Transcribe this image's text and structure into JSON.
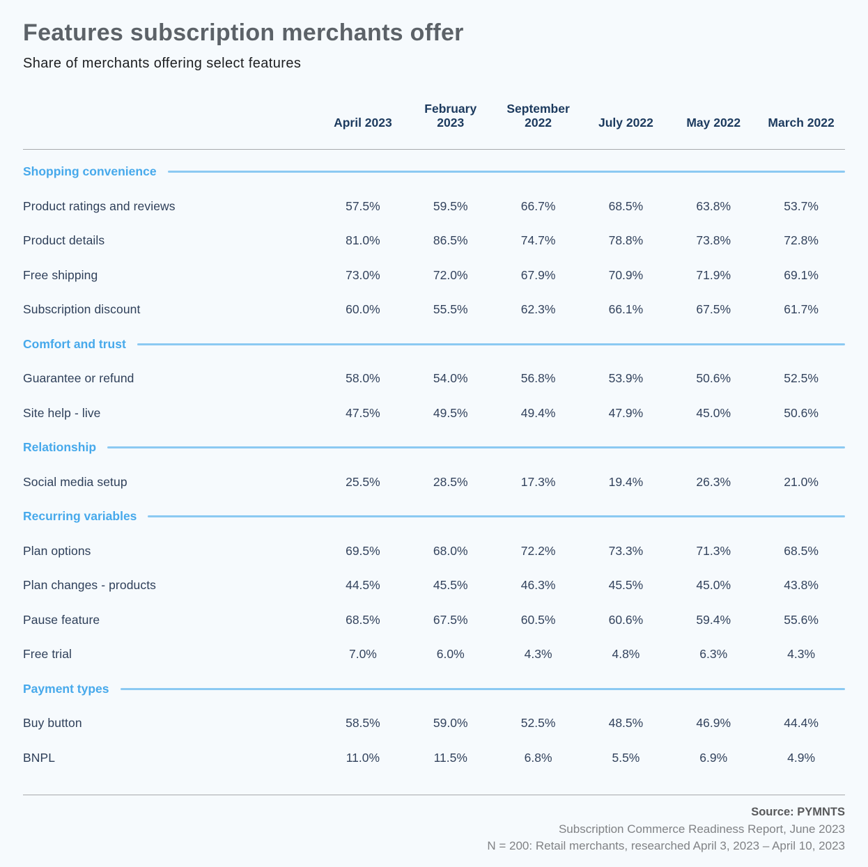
{
  "header": {
    "title": "Features subscription merchants offer",
    "subtitle": "Share of merchants offering select features"
  },
  "chart_data": {
    "type": "table",
    "title": "Features subscription merchants offer",
    "subtitle": "Share of merchants offering select features",
    "columns": [
      "April 2023",
      "February\n2023",
      "September\n2022",
      "July 2022",
      "May 2022",
      "March 2022"
    ],
    "sections": [
      {
        "name": "Shopping convenience",
        "rows": [
          {
            "label": "Product ratings and reviews",
            "values": [
              "57.5%",
              "59.5%",
              "66.7%",
              "68.5%",
              "63.8%",
              "53.7%"
            ]
          },
          {
            "label": "Product details",
            "values": [
              "81.0%",
              "86.5%",
              "74.7%",
              "78.8%",
              "73.8%",
              "72.8%"
            ]
          },
          {
            "label": "Free shipping",
            "values": [
              "73.0%",
              "72.0%",
              "67.9%",
              "70.9%",
              "71.9%",
              "69.1%"
            ]
          },
          {
            "label": "Subscription discount",
            "values": [
              "60.0%",
              "55.5%",
              "62.3%",
              "66.1%",
              "67.5%",
              "61.7%"
            ]
          }
        ]
      },
      {
        "name": "Comfort and trust",
        "rows": [
          {
            "label": "Guarantee or refund",
            "values": [
              "58.0%",
              "54.0%",
              "56.8%",
              "53.9%",
              "50.6%",
              "52.5%"
            ]
          },
          {
            "label": "Site help - live",
            "values": [
              "47.5%",
              "49.5%",
              "49.4%",
              "47.9%",
              "45.0%",
              "50.6%"
            ]
          }
        ]
      },
      {
        "name": "Relationship",
        "rows": [
          {
            "label": "Social media setup",
            "values": [
              "25.5%",
              "28.5%",
              "17.3%",
              "19.4%",
              "26.3%",
              "21.0%"
            ]
          }
        ]
      },
      {
        "name": "Recurring variables",
        "rows": [
          {
            "label": "Plan options",
            "values": [
              "69.5%",
              "68.0%",
              "72.2%",
              "73.3%",
              "71.3%",
              "68.5%"
            ]
          },
          {
            "label": "Plan changes - products",
            "values": [
              "44.5%",
              "45.5%",
              "46.3%",
              "45.5%",
              "45.0%",
              "43.8%"
            ]
          },
          {
            "label": "Pause feature",
            "values": [
              "68.5%",
              "67.5%",
              "60.5%",
              "60.6%",
              "59.4%",
              "55.6%"
            ]
          },
          {
            "label": "Free trial",
            "values": [
              "7.0%",
              "6.0%",
              "4.3%",
              "4.8%",
              "6.3%",
              "4.3%"
            ]
          }
        ]
      },
      {
        "name": "Payment types",
        "rows": [
          {
            "label": "Buy button",
            "values": [
              "58.5%",
              "59.0%",
              "52.5%",
              "48.5%",
              "46.9%",
              "44.4%"
            ]
          },
          {
            "label": "BNPL",
            "values": [
              "11.0%",
              "11.5%",
              "6.8%",
              "5.5%",
              "6.9%",
              "4.9%"
            ]
          }
        ]
      }
    ],
    "layout": {
      "legend": "none",
      "grid": "off"
    }
  },
  "footer": {
    "source": "Source: PYMNTS",
    "report": "Subscription Commerce Readiness Report, June 2023",
    "sample": "N = 200: Retail merchants, researched April 3, 2023 – April 10, 2023"
  },
  "colors": {
    "background": "#f6fafd",
    "title_gray": "#5c6268",
    "subtitle_dark": "#1c1d1f",
    "header_navy": "#1c3a5e",
    "value_navy": "#33435d",
    "section_blue": "#47a9eb",
    "section_line_blue": "#8bc9f2",
    "divider_gray": "#a7a9ac",
    "footer_gray": "#808285"
  }
}
